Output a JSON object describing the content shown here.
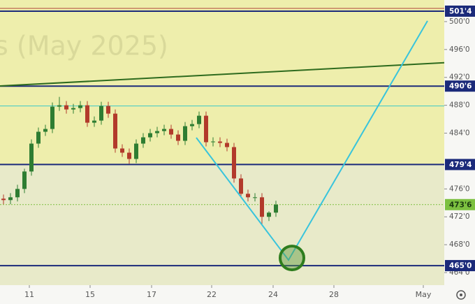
{
  "chart_data": {
    "type": "candlestick",
    "watermark": "s (May 2025)",
    "x": [
      0,
      1,
      2,
      3,
      4,
      5,
      6,
      7,
      8,
      9,
      10,
      11,
      12,
      13,
      14,
      15,
      16,
      17,
      18,
      19,
      20,
      21,
      22,
      23,
      24,
      25,
      26,
      27,
      28,
      29,
      30,
      31,
      32,
      33,
      34,
      35,
      36,
      37,
      38,
      39,
      40
    ],
    "open": [
      474.2,
      474.6,
      474.4,
      474.8,
      476.0,
      478.5,
      482.5,
      484.2,
      484.6,
      487.8,
      488.0,
      487.4,
      487.6,
      488.0,
      485.5,
      485.8,
      487.9,
      486.8,
      481.8,
      481.2,
      480.3,
      482.5,
      483.4,
      484.0,
      484.3,
      484.6,
      483.8,
      482.9,
      485.0,
      485.3,
      486.5,
      482.7,
      482.8,
      482.6,
      482.0,
      477.5,
      475.3,
      474.8,
      474.8,
      472.0,
      472.6
    ],
    "high": [
      475.2,
      475.2,
      475.4,
      476.6,
      478.9,
      483.1,
      484.8,
      485.2,
      488.4,
      489.2,
      488.6,
      488.2,
      488.6,
      488.6,
      486.4,
      488.5,
      488.5,
      487.4,
      482.4,
      481.8,
      483.1,
      484.0,
      484.6,
      484.9,
      485.2,
      485.2,
      484.4,
      485.6,
      485.9,
      487.1,
      487.1,
      483.4,
      483.4,
      483.2,
      482.6,
      478.1,
      475.9,
      475.4,
      475.4,
      472.8,
      474.3
    ],
    "low": [
      473.6,
      473.8,
      473.8,
      474.2,
      475.4,
      477.9,
      481.9,
      483.6,
      484.0,
      487.2,
      486.8,
      486.8,
      487.0,
      484.9,
      484.9,
      485.2,
      486.2,
      481.2,
      480.6,
      479.6,
      479.7,
      481.9,
      482.8,
      483.4,
      483.7,
      483.2,
      482.3,
      482.3,
      484.4,
      484.7,
      482.1,
      482.1,
      482.0,
      481.4,
      476.9,
      474.7,
      474.2,
      474.2,
      470.8,
      471.4,
      472.0
    ],
    "close": [
      474.6,
      474.4,
      474.8,
      476.0,
      478.5,
      482.5,
      484.2,
      484.6,
      487.8,
      488.0,
      487.4,
      487.6,
      488.0,
      485.5,
      485.8,
      487.9,
      486.8,
      481.8,
      481.2,
      480.3,
      482.5,
      483.4,
      484.0,
      484.3,
      484.6,
      483.8,
      482.9,
      485.0,
      485.3,
      486.5,
      482.7,
      482.8,
      482.6,
      482.0,
      477.5,
      475.3,
      474.8,
      474.8,
      472.0,
      472.6,
      473.75
    ],
    "up_color": "#2e7d32",
    "down_color": "#b23a2b",
    "xlim": [
      0.5,
      64.1
    ],
    "xticks": [
      {
        "value": 4.7,
        "label": "11"
      },
      {
        "value": 13.4,
        "label": "15"
      },
      {
        "value": 22.2,
        "label": "17"
      },
      {
        "value": 30.8,
        "label": "22"
      },
      {
        "value": 39.6,
        "label": "24"
      },
      {
        "value": 48.3,
        "label": "28"
      },
      {
        "value": 61.1,
        "label": "May"
      }
    ],
    "ylim": [
      462.2,
      503.1
    ],
    "yticks": [
      {
        "value": 464,
        "label": "464'0"
      },
      {
        "value": 468,
        "label": "468'0"
      },
      {
        "value": 472,
        "label": "472'0"
      },
      {
        "value": 476,
        "label": "476'0"
      },
      {
        "value": 484,
        "label": "484'0"
      },
      {
        "value": 488,
        "label": "488'0"
      },
      {
        "value": 492,
        "label": "492'0"
      },
      {
        "value": 496,
        "label": "496'0"
      },
      {
        "value": 500,
        "label": "500'0"
      }
    ],
    "zones": [
      {
        "from": 479.5,
        "to": 503.1,
        "color": "#eeeeac"
      },
      {
        "from": 462.2,
        "to": 479.5,
        "color": "#e8eac9"
      }
    ],
    "levels": [
      {
        "value": 501.9,
        "color": "#b0463a"
      },
      {
        "value": 501.5,
        "label": "501'4",
        "color": "#1b2a7a"
      },
      {
        "value": 490.75,
        "label": "490'6",
        "color": "#1b2a7a"
      },
      {
        "value": 487.9,
        "color": "#3cc8c8"
      },
      {
        "value": 479.5,
        "label": "479'4",
        "color": "#1b2a7a"
      },
      {
        "value": 473.75,
        "label": "473'6",
        "color": "#7cc040",
        "dashed": true
      },
      {
        "value": 465,
        "label": "465'0",
        "color": "#1b2a7a"
      }
    ],
    "lines": [
      {
        "x": [
          0.5,
          64.1
        ],
        "y": [
          490.77,
          494.1
        ],
        "color": "#2e6b1e"
      },
      {
        "x": [
          28.6,
          41.8,
          61.7
        ],
        "y": [
          483.35,
          465.8,
          500.1
        ],
        "color": "#38c4dc"
      }
    ],
    "marker": {
      "x": 42.3,
      "y": 466.1,
      "color": "#2e7d1e"
    }
  }
}
